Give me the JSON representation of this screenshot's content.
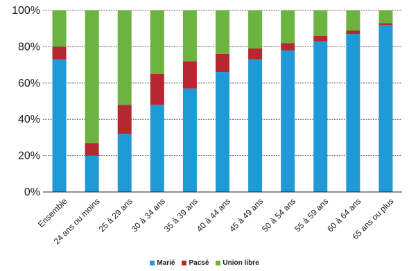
{
  "chart_data": {
    "type": "bar",
    "stacked": true,
    "title": "",
    "xlabel": "",
    "ylabel": "",
    "ylim": [
      0,
      100
    ],
    "yticks": [
      "0%",
      "20%",
      "40%",
      "60%",
      "80%",
      "100%"
    ],
    "grid": true,
    "legend_position": "bottom",
    "categories": [
      "Ensemble",
      "24 ans ou moins",
      "25 à 29 ans",
      "30 à 34 ans",
      "35 à 39 ans",
      "40 à 44 ans",
      "45 à 49 ans",
      "50 à 54 ans",
      "55 à 59 ans",
      "60 à 64 ans",
      "65 ans ou plus"
    ],
    "series": [
      {
        "name": "Marié",
        "color": "#1f9ad6",
        "values": [
          73,
          20,
          32,
          48,
          57,
          66,
          73,
          78,
          83,
          87,
          92
        ]
      },
      {
        "name": "Pacsé",
        "color": "#b5282f",
        "values": [
          7,
          7,
          16,
          17,
          15,
          10,
          6,
          4,
          3,
          2,
          1
        ]
      },
      {
        "name": "Union libre",
        "color": "#6db33f",
        "values": [
          20,
          73,
          52,
          35,
          28,
          24,
          21,
          18,
          14,
          11,
          7
        ]
      }
    ]
  }
}
